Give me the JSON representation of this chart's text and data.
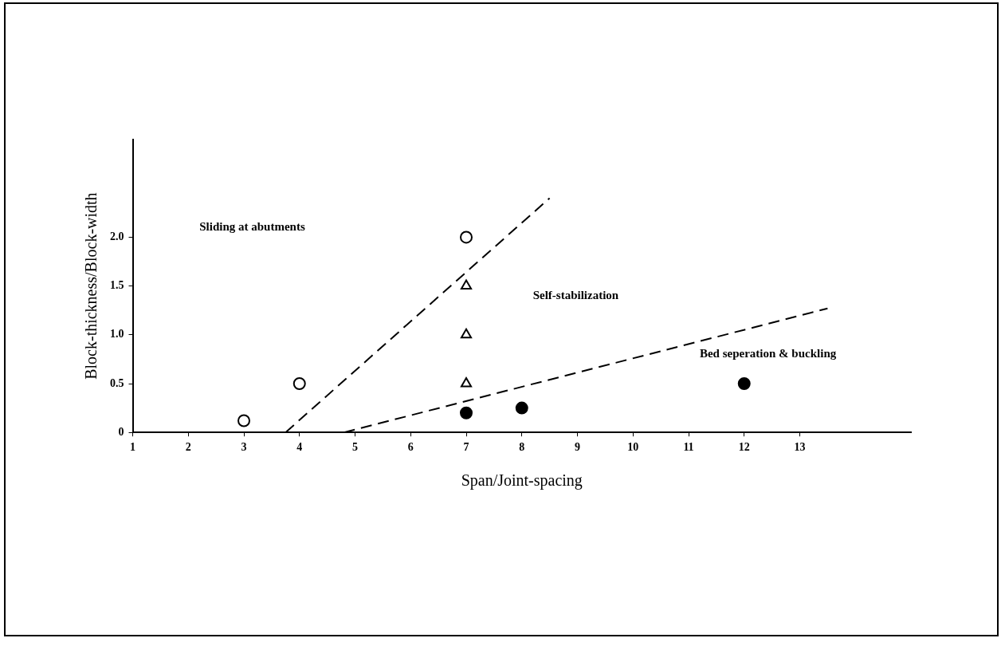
{
  "chart_data": {
    "type": "scatter",
    "xlabel": "Span/Joint-spacing",
    "ylabel": "Block-thickness/Block-width",
    "xlim": [
      1,
      15
    ],
    "xticks": [
      1,
      2,
      3,
      4,
      5,
      6,
      7,
      8,
      9,
      10,
      11,
      12,
      13
    ],
    "ylim": [
      0,
      3
    ],
    "yticks": [
      {
        "value": 0,
        "label": "0"
      },
      0.5,
      {
        "value": 1,
        "label": "1.0"
      },
      1.5,
      {
        "value": 2,
        "label": "2.0"
      }
    ],
    "grid": false,
    "legend": false,
    "series": [
      {
        "marker": "circle",
        "color": "#ffffff",
        "x": [
          3,
          4,
          7
        ],
        "values": [
          0.12,
          0.5,
          2.0
        ]
      },
      {
        "marker": "triangle",
        "color": "#ffffff",
        "x": [
          7,
          7,
          7
        ],
        "values": [
          1.5,
          1.0,
          0.5
        ]
      },
      {
        "marker": "circle",
        "color": "#000000",
        "x": [
          7,
          8,
          12
        ],
        "values": [
          0.2,
          0.25,
          0.5
        ]
      },
      {
        "type": "line",
        "marker": "none",
        "line_style": "dashed",
        "color": "#000000",
        "x": [
          3.75,
          8.5
        ],
        "values": [
          0,
          2.4
        ]
      },
      {
        "type": "line",
        "marker": "none",
        "line_style": "dashed",
        "color": "#000000",
        "x": [
          4.8,
          13.5
        ],
        "values": [
          0,
          1.27
        ]
      }
    ],
    "annotations": [
      "Sliding at abutments",
      "Self-stabilization",
      "Bed seperation & buckling"
    ]
  }
}
